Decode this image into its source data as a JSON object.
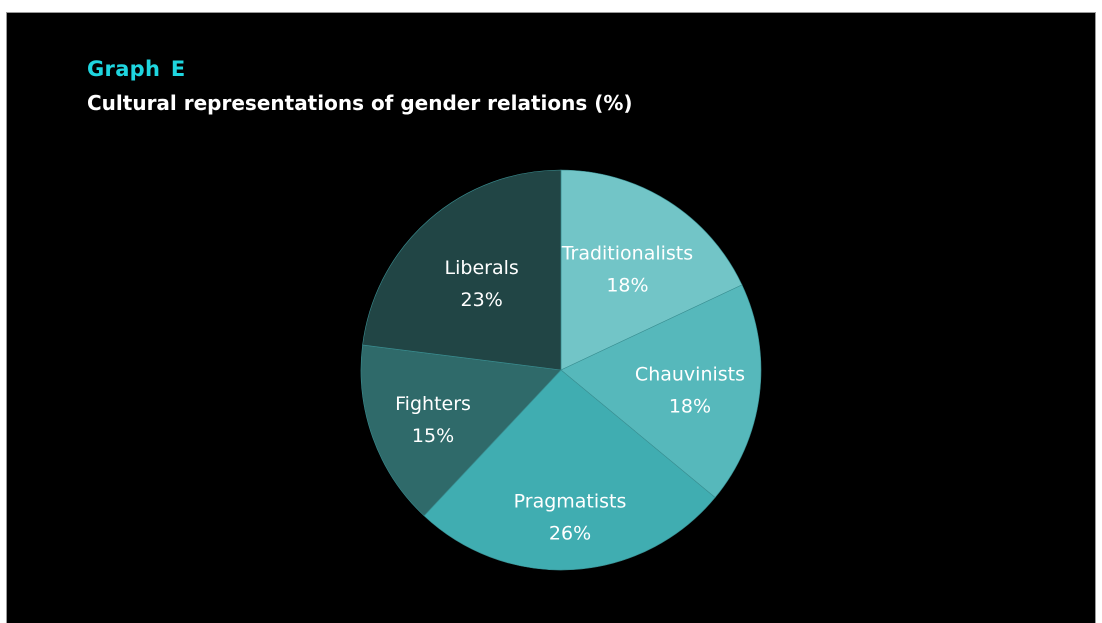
{
  "chart_data": {
    "type": "pie",
    "graph_label": "Graph  E",
    "title": "Cultural representations of gender relations (%)",
    "slices": [
      {
        "label": "Traditionalists",
        "value": 18,
        "value_label": "18%",
        "color": "#72c5c7"
      },
      {
        "label": "Chauvinists",
        "value": 18,
        "value_label": "18%",
        "color": "#56b8bb"
      },
      {
        "label": "Pragmatists",
        "value": 26,
        "value_label": "26%",
        "color": "#40adb1"
      },
      {
        "label": "Fighters",
        "value": 15,
        "value_label": "15%",
        "color": "#2f6a6a"
      },
      {
        "label": "Liberals",
        "value": 23,
        "value_label": "23%",
        "color": "#214545"
      }
    ],
    "start": "12 o'clock",
    "direction": "clockwise",
    "legend": "none"
  }
}
